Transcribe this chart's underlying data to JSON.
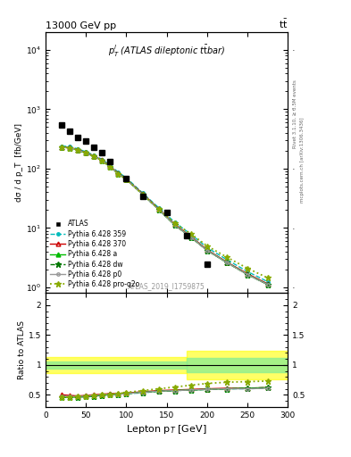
{
  "title_left": "13000 GeV pp",
  "title_right": "tt̅",
  "annotation": "p$_T^l$ (ATLAS dileptonic ttbar)",
  "watermark": "ATLAS_2019_I1759875",
  "right_label_top": "Rivet 3.1.10, ≥ 3.5M events",
  "right_label_bot": "mcplots.cern.ch [arXiv:1306.3436]",
  "ylabel_main": "dσ / d p_T  [fb/GeV]",
  "ylabel_ratio": "Ratio to ATLAS",
  "xlabel": "Lepton p$_T$ [GeV]",
  "ATLAS_x": [
    20,
    30,
    40,
    50,
    60,
    70,
    80,
    100,
    120,
    150,
    175,
    200
  ],
  "ATLAS_vals": [
    550,
    420,
    340,
    290,
    230,
    185,
    130,
    68,
    34,
    18,
    7.5,
    2.5
  ],
  "py359_x": [
    20,
    30,
    40,
    50,
    60,
    70,
    80,
    90,
    100,
    120,
    140,
    160,
    180,
    200,
    225,
    250,
    275
  ],
  "py359_y": [
    240,
    235,
    215,
    192,
    168,
    143,
    113,
    87,
    70,
    39,
    22,
    12.5,
    7.8,
    4.7,
    2.9,
    1.85,
    1.25
  ],
  "py370_x": [
    20,
    30,
    40,
    50,
    60,
    70,
    80,
    90,
    100,
    120,
    140,
    160,
    180,
    200,
    225,
    250,
    275
  ],
  "py370_y": [
    232,
    228,
    208,
    187,
    163,
    139,
    109,
    84,
    67,
    38,
    21,
    11.5,
    7.2,
    4.3,
    2.65,
    1.7,
    1.15
  ],
  "pya_x": [
    20,
    30,
    40,
    50,
    60,
    70,
    80,
    90,
    100,
    120,
    140,
    160,
    180,
    200,
    225,
    250,
    275
  ],
  "pya_y": [
    228,
    225,
    205,
    184,
    161,
    137,
    107,
    82,
    66,
    37,
    20.5,
    11.2,
    7.0,
    4.2,
    2.6,
    1.65,
    1.12
  ],
  "pydw_x": [
    20,
    30,
    40,
    50,
    60,
    70,
    80,
    90,
    100,
    120,
    140,
    160,
    180,
    200,
    225,
    250,
    275
  ],
  "pydw_y": [
    228,
    224,
    204,
    183,
    160,
    136,
    107,
    82,
    66,
    37,
    20.5,
    11.2,
    7.0,
    4.2,
    2.6,
    1.65,
    1.12
  ],
  "pyp0_x": [
    20,
    30,
    40,
    50,
    60,
    70,
    80,
    90,
    100,
    120,
    140,
    160,
    180,
    200,
    225,
    250,
    275
  ],
  "pyp0_y": [
    228,
    225,
    205,
    184,
    161,
    137,
    107,
    82,
    66,
    37,
    20.5,
    11.2,
    7.0,
    4.2,
    2.6,
    1.65,
    1.12
  ],
  "pyprq2o_x": [
    20,
    30,
    40,
    50,
    60,
    70,
    80,
    90,
    100,
    120,
    140,
    160,
    180,
    200,
    225,
    250,
    275
  ],
  "pyprq2o_y": [
    228,
    225,
    205,
    184,
    161,
    137,
    107,
    82,
    66,
    37,
    21,
    12,
    8.0,
    5.0,
    3.2,
    2.1,
    1.45
  ],
  "ratio_py359_x": [
    20,
    30,
    40,
    50,
    60,
    70,
    80,
    90,
    100,
    120,
    140,
    160,
    180,
    200,
    225,
    250,
    275
  ],
  "ratio_py359_y": [
    0.48,
    0.47,
    0.47,
    0.48,
    0.49,
    0.5,
    0.51,
    0.51,
    0.52,
    0.53,
    0.56,
    0.57,
    0.58,
    0.59,
    0.6,
    0.6,
    0.61
  ],
  "ratio_py370_x": [
    20,
    30,
    40,
    50,
    60,
    70,
    80,
    90,
    100,
    120,
    140,
    160,
    180,
    200,
    225,
    250,
    275
  ],
  "ratio_py370_y": [
    0.5,
    0.49,
    0.48,
    0.49,
    0.5,
    0.51,
    0.52,
    0.52,
    0.53,
    0.55,
    0.57,
    0.58,
    0.59,
    0.6,
    0.61,
    0.61,
    0.62
  ],
  "ratio_pya_x": [
    20,
    30,
    40,
    50,
    60,
    70,
    80,
    90,
    100,
    120,
    140,
    160,
    180,
    200,
    225,
    250,
    275
  ],
  "ratio_pya_y": [
    0.46,
    0.46,
    0.46,
    0.47,
    0.48,
    0.49,
    0.5,
    0.51,
    0.52,
    0.54,
    0.56,
    0.57,
    0.58,
    0.59,
    0.6,
    0.61,
    0.62
  ],
  "ratio_pydw_x": [
    20,
    30,
    40,
    50,
    60,
    70,
    80,
    90,
    100,
    120,
    140,
    160,
    180,
    200,
    225,
    250,
    275
  ],
  "ratio_pydw_y": [
    0.46,
    0.46,
    0.46,
    0.47,
    0.48,
    0.49,
    0.5,
    0.51,
    0.52,
    0.54,
    0.56,
    0.57,
    0.58,
    0.59,
    0.6,
    0.61,
    0.62
  ],
  "ratio_pyp0_x": [
    20,
    30,
    40,
    50,
    60,
    70,
    80,
    90,
    100,
    120,
    140,
    160,
    180,
    200,
    225,
    250,
    275
  ],
  "ratio_pyp0_y": [
    0.47,
    0.47,
    0.47,
    0.48,
    0.49,
    0.5,
    0.51,
    0.51,
    0.52,
    0.54,
    0.56,
    0.57,
    0.58,
    0.59,
    0.6,
    0.6,
    0.61
  ],
  "ratio_pyprq2o_x": [
    20,
    30,
    40,
    50,
    60,
    70,
    80,
    90,
    100,
    120,
    140,
    160,
    180,
    200,
    225,
    250,
    275
  ],
  "ratio_pyprq2o_y": [
    0.46,
    0.46,
    0.47,
    0.48,
    0.49,
    0.5,
    0.51,
    0.52,
    0.54,
    0.57,
    0.6,
    0.63,
    0.66,
    0.69,
    0.71,
    0.72,
    0.73
  ],
  "band1_xmin": 0,
  "band1_xmax": 175,
  "band1_yellow_lo": 0.87,
  "band1_yellow_hi": 1.13,
  "band1_green_lo": 0.94,
  "band1_green_hi": 1.06,
  "band2_xmin": 175,
  "band2_xmax": 300,
  "band2_yellow_lo": 0.76,
  "band2_yellow_hi": 1.24,
  "band2_green_lo": 0.88,
  "band2_green_hi": 1.12,
  "xlim": [
    0,
    300
  ],
  "ylim_main": [
    0.8,
    20000
  ],
  "ylim_ratio": [
    0.3,
    2.2
  ],
  "color_atlas": "#000000",
  "color_py359": "#00BBBB",
  "color_py370": "#CC0000",
  "color_pya": "#00BB00",
  "color_pydw": "#007700",
  "color_pyp0": "#999999",
  "color_pyprq2o": "#88AA00"
}
